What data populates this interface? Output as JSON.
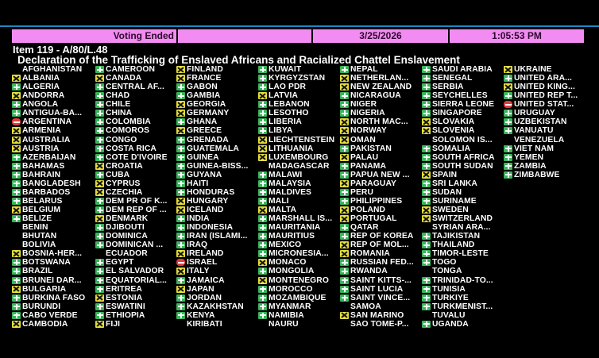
{
  "status": {
    "state": "Voting Ended",
    "blank": "",
    "date": "3/25/2026",
    "time": "1:05:53 PM"
  },
  "item": "Item 119 - A/80/L.48",
  "title": "Declaration of the Trafficking of Enslaved Africans and Racialized Chattel Enslavement",
  "colors": {
    "yes": "#3bb45c",
    "abstain": "#e6df3c",
    "no": "#e23b3b",
    "status_bar": "#f28cf2",
    "rule": "#1e88c8"
  },
  "icons": {
    "y": "plus-icon",
    "a": "x-icon",
    "n": "minus-icon",
    "x": "no-vote"
  },
  "columns": [
    [
      {
        "n": "AFGHANISTAN",
        "v": "x"
      },
      {
        "n": "ALBANIA",
        "v": "a"
      },
      {
        "n": "ALGERIA",
        "v": "y"
      },
      {
        "n": "ANDORRA",
        "v": "a"
      },
      {
        "n": "ANGOLA",
        "v": "y"
      },
      {
        "n": "ANTIGUA-BA...",
        "v": "y"
      },
      {
        "n": "ARGENTINA",
        "v": "n"
      },
      {
        "n": "ARMENIA",
        "v": "a"
      },
      {
        "n": "AUSTRALIA",
        "v": "a"
      },
      {
        "n": "AUSTRIA",
        "v": "a"
      },
      {
        "n": "AZERBAIJAN",
        "v": "y"
      },
      {
        "n": "BAHAMAS",
        "v": "y"
      },
      {
        "n": "BAHRAIN",
        "v": "y"
      },
      {
        "n": "BANGLADESH",
        "v": "y"
      },
      {
        "n": "BARBADOS",
        "v": "y"
      },
      {
        "n": "BELARUS",
        "v": "y"
      },
      {
        "n": "BELGIUM",
        "v": "a"
      },
      {
        "n": "BELIZE",
        "v": "y"
      },
      {
        "n": "BENIN",
        "v": "x"
      },
      {
        "n": "BHUTAN",
        "v": "x"
      },
      {
        "n": "BOLIVIA",
        "v": "x"
      },
      {
        "n": "BOSNIA-HER...",
        "v": "a"
      },
      {
        "n": "BOTSWANA",
        "v": "y"
      },
      {
        "n": "BRAZIL",
        "v": "y"
      },
      {
        "n": "BRUNEI DAR...",
        "v": "y"
      },
      {
        "n": "BULGARIA",
        "v": "a"
      },
      {
        "n": "BURKINA FASO",
        "v": "y"
      },
      {
        "n": "BURUNDI",
        "v": "y"
      },
      {
        "n": "CABO VERDE",
        "v": "y"
      },
      {
        "n": "CAMBODIA",
        "v": "a"
      }
    ],
    [
      {
        "n": "CAMEROON",
        "v": "y"
      },
      {
        "n": "CANADA",
        "v": "a"
      },
      {
        "n": "CENTRAL AF...",
        "v": "y"
      },
      {
        "n": "CHAD",
        "v": "y"
      },
      {
        "n": "CHILE",
        "v": "y"
      },
      {
        "n": "CHINA",
        "v": "y"
      },
      {
        "n": "COLOMBIA",
        "v": "y"
      },
      {
        "n": "COMOROS",
        "v": "y"
      },
      {
        "n": "CONGO",
        "v": "y"
      },
      {
        "n": "COSTA RICA",
        "v": "y"
      },
      {
        "n": "COTE D'IVOIRE",
        "v": "y"
      },
      {
        "n": "CROATIA",
        "v": "a"
      },
      {
        "n": "CUBA",
        "v": "y"
      },
      {
        "n": "CYPRUS",
        "v": "a"
      },
      {
        "n": "CZECHIA",
        "v": "a"
      },
      {
        "n": "DEM PR OF K...",
        "v": "y"
      },
      {
        "n": "DEM REP OF ...",
        "v": "y"
      },
      {
        "n": "DENMARK",
        "v": "a"
      },
      {
        "n": "DJIBOUTI",
        "v": "y"
      },
      {
        "n": "DOMINICA",
        "v": "y"
      },
      {
        "n": "DOMINICAN ...",
        "v": "y"
      },
      {
        "n": "ECUADOR",
        "v": "x"
      },
      {
        "n": "EGYPT",
        "v": "y"
      },
      {
        "n": "EL SALVADOR",
        "v": "y"
      },
      {
        "n": "EQUATORIAL...",
        "v": "y"
      },
      {
        "n": "ERITREA",
        "v": "y"
      },
      {
        "n": "ESTONIA",
        "v": "a"
      },
      {
        "n": "ESWATINI",
        "v": "y"
      },
      {
        "n": "ETHIOPIA",
        "v": "y"
      },
      {
        "n": "FIJI",
        "v": "a"
      }
    ],
    [
      {
        "n": "FINLAND",
        "v": "a"
      },
      {
        "n": "FRANCE",
        "v": "a"
      },
      {
        "n": "GABON",
        "v": "y"
      },
      {
        "n": "GAMBIA",
        "v": "y"
      },
      {
        "n": "GEORGIA",
        "v": "a"
      },
      {
        "n": "GERMANY",
        "v": "a"
      },
      {
        "n": "GHANA",
        "v": "y"
      },
      {
        "n": "GREECE",
        "v": "a"
      },
      {
        "n": "GRENADA",
        "v": "y"
      },
      {
        "n": "GUATEMALA",
        "v": "y"
      },
      {
        "n": "GUINEA",
        "v": "y"
      },
      {
        "n": "GUINEA-BISS...",
        "v": "y"
      },
      {
        "n": "GUYANA",
        "v": "y"
      },
      {
        "n": "HAITI",
        "v": "y"
      },
      {
        "n": "HONDURAS",
        "v": "y"
      },
      {
        "n": "HUNGARY",
        "v": "a"
      },
      {
        "n": "ICELAND",
        "v": "a"
      },
      {
        "n": "INDIA",
        "v": "y"
      },
      {
        "n": "INDONESIA",
        "v": "y"
      },
      {
        "n": "IRAN (ISLAMI...",
        "v": "y"
      },
      {
        "n": "IRAQ",
        "v": "y"
      },
      {
        "n": "IRELAND",
        "v": "a"
      },
      {
        "n": "ISRAEL",
        "v": "n"
      },
      {
        "n": "ITALY",
        "v": "a"
      },
      {
        "n": "JAMAICA",
        "v": "y"
      },
      {
        "n": "JAPAN",
        "v": "a"
      },
      {
        "n": "JORDAN",
        "v": "y"
      },
      {
        "n": "KAZAKHSTAN",
        "v": "y"
      },
      {
        "n": "KENYA",
        "v": "y"
      },
      {
        "n": "KIRIBATI",
        "v": "x"
      }
    ],
    [
      {
        "n": "KUWAIT",
        "v": "y"
      },
      {
        "n": "KYRGYZSTAN",
        "v": "y"
      },
      {
        "n": "LAO PDR",
        "v": "y"
      },
      {
        "n": "LATVIA",
        "v": "a"
      },
      {
        "n": "LEBANON",
        "v": "y"
      },
      {
        "n": "LESOTHO",
        "v": "y"
      },
      {
        "n": "LIBERIA",
        "v": "y"
      },
      {
        "n": "LIBYA",
        "v": "y"
      },
      {
        "n": "LIECHTENSTEIN",
        "v": "a"
      },
      {
        "n": "LITHUANIA",
        "v": "a"
      },
      {
        "n": "LUXEMBOURG",
        "v": "a"
      },
      {
        "n": "MADAGASCAR",
        "v": "x"
      },
      {
        "n": "MALAWI",
        "v": "y"
      },
      {
        "n": "MALAYSIA",
        "v": "y"
      },
      {
        "n": "MALDIVES",
        "v": "y"
      },
      {
        "n": "MALI",
        "v": "y"
      },
      {
        "n": "MALTA",
        "v": "a"
      },
      {
        "n": "MARSHALL IS...",
        "v": "y"
      },
      {
        "n": "MAURITANIA",
        "v": "y"
      },
      {
        "n": "MAURITIUS",
        "v": "y"
      },
      {
        "n": "MEXICO",
        "v": "y"
      },
      {
        "n": "MICRONESIA...",
        "v": "y"
      },
      {
        "n": "MONACO",
        "v": "a"
      },
      {
        "n": "MONGOLIA",
        "v": "y"
      },
      {
        "n": "MONTENEGRO",
        "v": "a"
      },
      {
        "n": "MOROCCO",
        "v": "y"
      },
      {
        "n": "MOZAMBIQUE",
        "v": "y"
      },
      {
        "n": "MYANMAR",
        "v": "y"
      },
      {
        "n": "NAMIBIA",
        "v": "y"
      },
      {
        "n": "NAURU",
        "v": "x"
      }
    ],
    [
      {
        "n": "NEPAL",
        "v": "y"
      },
      {
        "n": "NETHERLAN...",
        "v": "a"
      },
      {
        "n": "NEW ZEALAND",
        "v": "a"
      },
      {
        "n": "NICARAGUA",
        "v": "y"
      },
      {
        "n": "NIGER",
        "v": "y"
      },
      {
        "n": "NIGERIA",
        "v": "y"
      },
      {
        "n": "NORTH MAC...",
        "v": "a"
      },
      {
        "n": "NORWAY",
        "v": "a"
      },
      {
        "n": "OMAN",
        "v": "a"
      },
      {
        "n": "PAKISTAN",
        "v": "y"
      },
      {
        "n": "PALAU",
        "v": "a"
      },
      {
        "n": "PANAMA",
        "v": "y"
      },
      {
        "n": "PAPUA NEW ...",
        "v": "y"
      },
      {
        "n": "PARAGUAY",
        "v": "a"
      },
      {
        "n": "PERU",
        "v": "y"
      },
      {
        "n": "PHILIPPINES",
        "v": "y"
      },
      {
        "n": "POLAND",
        "v": "a"
      },
      {
        "n": "PORTUGAL",
        "v": "a"
      },
      {
        "n": "QATAR",
        "v": "y"
      },
      {
        "n": "REP OF KOREA",
        "v": "y"
      },
      {
        "n": "REP OF MOL...",
        "v": "a"
      },
      {
        "n": "ROMANIA",
        "v": "a"
      },
      {
        "n": "RUSSIAN FED...",
        "v": "y"
      },
      {
        "n": "RWANDA",
        "v": "y"
      },
      {
        "n": "SAINT KITTS-...",
        "v": "y"
      },
      {
        "n": "SAINT LUCIA",
        "v": "y"
      },
      {
        "n": "SAINT VINCE...",
        "v": "y"
      },
      {
        "n": "SAMOA",
        "v": "x"
      },
      {
        "n": "SAN MARINO",
        "v": "a"
      },
      {
        "n": "SAO TOME-P...",
        "v": "x"
      }
    ],
    [
      {
        "n": "SAUDI ARABIA",
        "v": "y"
      },
      {
        "n": "SENEGAL",
        "v": "y"
      },
      {
        "n": "SERBIA",
        "v": "y"
      },
      {
        "n": "SEYCHELLES",
        "v": "y"
      },
      {
        "n": "SIERRA LEONE",
        "v": "y"
      },
      {
        "n": "SINGAPORE",
        "v": "y"
      },
      {
        "n": "SLOVAKIA",
        "v": "a"
      },
      {
        "n": "SLOVENIA",
        "v": "a"
      },
      {
        "n": "SOLOMON IS...",
        "v": "x"
      },
      {
        "n": "SOMALIA",
        "v": "y"
      },
      {
        "n": "SOUTH AFRICA",
        "v": "y"
      },
      {
        "n": "SOUTH SUDAN",
        "v": "y"
      },
      {
        "n": "SPAIN",
        "v": "a"
      },
      {
        "n": "SRI LANKA",
        "v": "y"
      },
      {
        "n": "SUDAN",
        "v": "y"
      },
      {
        "n": "SURINAME",
        "v": "y"
      },
      {
        "n": "SWEDEN",
        "v": "a"
      },
      {
        "n": "SWITZERLAND",
        "v": "a"
      },
      {
        "n": "SYRIAN ARA...",
        "v": "x"
      },
      {
        "n": "TAJIKISTAN",
        "v": "y"
      },
      {
        "n": "THAILAND",
        "v": "y"
      },
      {
        "n": "TIMOR-LESTE",
        "v": "y"
      },
      {
        "n": "TOGO",
        "v": "y"
      },
      {
        "n": "TONGA",
        "v": "x"
      },
      {
        "n": "TRINIDAD-TO...",
        "v": "y"
      },
      {
        "n": "TUNISIA",
        "v": "y"
      },
      {
        "n": "TURKIYE",
        "v": "y"
      },
      {
        "n": "TURKMENIST...",
        "v": "y"
      },
      {
        "n": "TUVALU",
        "v": "x"
      },
      {
        "n": "UGANDA",
        "v": "y"
      }
    ],
    [
      {
        "n": "UKRAINE",
        "v": "a"
      },
      {
        "n": "UNITED ARA...",
        "v": "y"
      },
      {
        "n": "UNITED KING...",
        "v": "a"
      },
      {
        "n": "UNITED REP T...",
        "v": "y"
      },
      {
        "n": "UNITED STAT...",
        "v": "n"
      },
      {
        "n": "URUGUAY",
        "v": "y"
      },
      {
        "n": "UZBEKISTAN",
        "v": "y"
      },
      {
        "n": "VANUATU",
        "v": "y"
      },
      {
        "n": "VENEZUELA",
        "v": "x"
      },
      {
        "n": "VIET NAM",
        "v": "y"
      },
      {
        "n": "YEMEN",
        "v": "y"
      },
      {
        "n": "ZAMBIA",
        "v": "y"
      },
      {
        "n": "ZIMBABWE",
        "v": "y"
      }
    ]
  ]
}
